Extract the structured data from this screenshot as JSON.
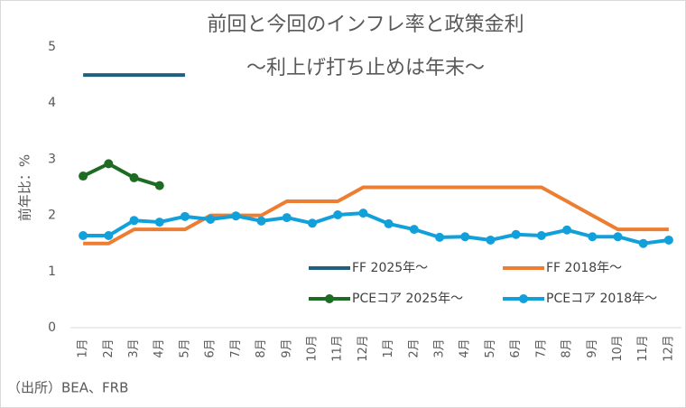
{
  "chart_data": {
    "type": "line",
    "title": "前回と今回のインフレ率と政策金利",
    "subtitle": "〜利上げ打ち止めは年末〜",
    "y_label": "前年比：%",
    "source": "（出所）BEA、FRB",
    "categories": [
      "1月",
      "2月",
      "3月",
      "4月",
      "5月",
      "6月",
      "7月",
      "8月",
      "9月",
      "10月",
      "11月",
      "12月",
      "1月",
      "2月",
      "3月",
      "4月",
      "5月",
      "6月",
      "7月",
      "8月",
      "9月",
      "10月",
      "11月",
      "12月"
    ],
    "series": [
      {
        "name": "FF 2025年〜",
        "color": "#1f5f7f",
        "marker": false,
        "values": [
          4.5,
          4.5,
          4.5,
          4.5,
          4.5,
          null,
          null,
          null,
          null,
          null,
          null,
          null,
          null,
          null,
          null,
          null,
          null,
          null,
          null,
          null,
          null,
          null,
          null,
          null
        ]
      },
      {
        "name": "FF 2018年〜",
        "color": "#ed7d31",
        "marker": false,
        "values": [
          1.5,
          1.5,
          1.75,
          1.75,
          1.75,
          2.0,
          2.0,
          2.0,
          2.25,
          2.25,
          2.25,
          2.5,
          2.5,
          2.5,
          2.5,
          2.5,
          2.5,
          2.5,
          2.5,
          2.25,
          2.0,
          1.75,
          1.75,
          1.75
        ]
      },
      {
        "name": "PCEコア 2025年〜",
        "color": "#1e6b24",
        "marker": true,
        "values": [
          2.7,
          2.92,
          2.67,
          2.53,
          null,
          null,
          null,
          null,
          null,
          null,
          null,
          null,
          null,
          null,
          null,
          null,
          null,
          null,
          null,
          null,
          null,
          null,
          null,
          null
        ]
      },
      {
        "name": "PCEコア 2018年〜",
        "color": "#12a0db",
        "marker": true,
        "values": [
          1.64,
          1.64,
          1.91,
          1.88,
          1.98,
          1.93,
          1.99,
          1.9,
          1.96,
          1.86,
          2.01,
          2.04,
          1.85,
          1.75,
          1.61,
          1.62,
          1.56,
          1.66,
          1.64,
          1.74,
          1.62,
          1.62,
          1.5,
          1.56
        ]
      }
    ],
    "ylim": [
      0,
      5
    ],
    "yticks": [
      0,
      1,
      2,
      3,
      4,
      5
    ],
    "grid": false
  }
}
